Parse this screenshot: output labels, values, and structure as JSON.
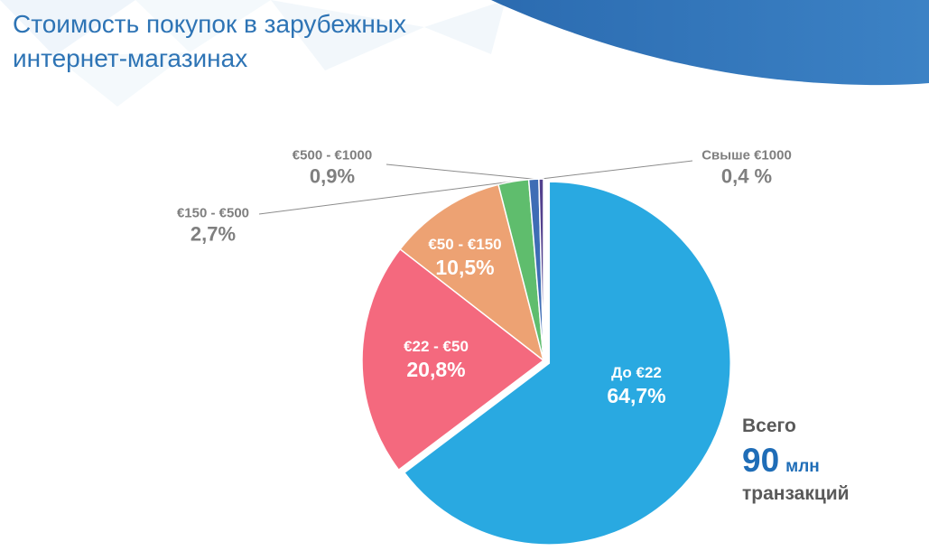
{
  "header": {
    "title_line1": "Стоимость покупок в зарубежных",
    "title_line2": "интернет-магазинах",
    "title_color": "#2E74B5"
  },
  "colors": {
    "accent_blue": "#2E74B5",
    "total_value_blue": "#1F6DB7",
    "outside_label_gray": "#7F7F7F",
    "note_gray": "#595959",
    "leader_line_gray": "#8C8C8C"
  },
  "chart_data": {
    "type": "pie",
    "title": "Стоимость покупок в зарубежных интернет-магазинах",
    "unit": "%",
    "start_angle_deg": 0,
    "direction": "clockwise",
    "legend_position": "none",
    "slices": [
      {
        "label": "До €22",
        "value": 64.7,
        "pct_label": "64,7%",
        "color": "#29A9E1",
        "label_placement": "inside"
      },
      {
        "label": "€22 - €50",
        "value": 20.8,
        "pct_label": "20,8%",
        "color": "#F4697E",
        "label_placement": "inside"
      },
      {
        "label": "€50 - €150",
        "value": 10.5,
        "pct_label": "10,5%",
        "color": "#EDA273",
        "label_placement": "inside"
      },
      {
        "label": "€150 - €500",
        "value": 2.7,
        "pct_label": "2,7%",
        "color": "#5FBD6D",
        "label_placement": "outside"
      },
      {
        "label": "€500 - €1000",
        "value": 0.9,
        "pct_label": "0,9%",
        "color": "#3E6DB5",
        "label_placement": "outside"
      },
      {
        "label": "Свыше €1000",
        "value": 0.4,
        "pct_label": "0,4 %",
        "color": "#53418E",
        "label_placement": "outside"
      }
    ],
    "total_note": {
      "prefix": "Всего",
      "value": "90",
      "unit": "млн",
      "suffix": "транзакций"
    }
  }
}
